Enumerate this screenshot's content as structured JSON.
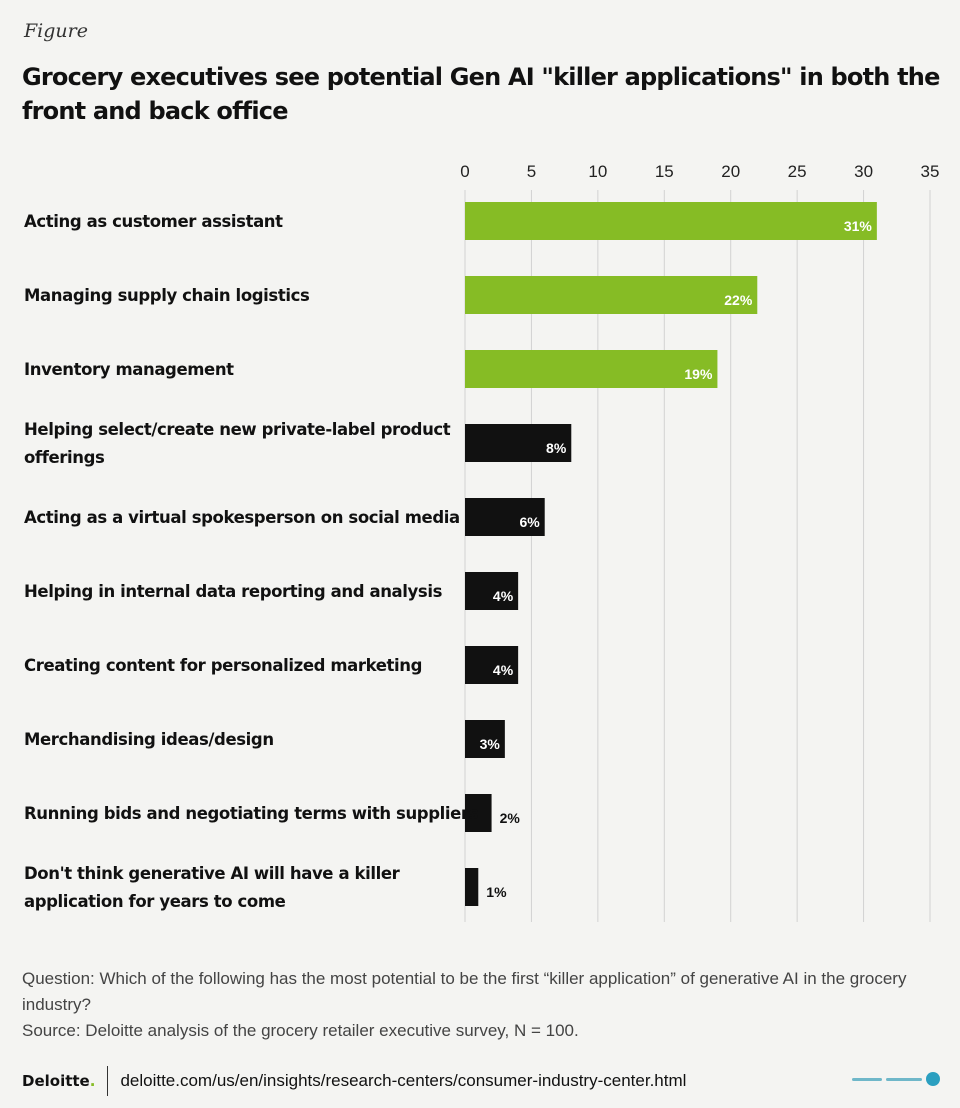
{
  "figure_label": "Figure",
  "title": "Grocery executives see potential Gen AI \"killer applications\" in both the front and back office",
  "chart_data": {
    "type": "bar",
    "orientation": "horizontal",
    "categories": [
      "Acting as customer assistant",
      "Managing supply chain logistics",
      "Inventory management",
      "Helping select/create new private-label product offerings",
      "Acting as a virtual spokesperson on social media",
      "Helping in internal data reporting and analysis",
      "Creating content for personalized marketing",
      "Merchandising ideas/design",
      "Running bids and negotiating terms with suppliers",
      "Don't think generative AI will have a killer application for years to come"
    ],
    "category_lines": [
      [
        "Acting as customer assistant"
      ],
      [
        "Managing supply chain logistics"
      ],
      [
        "Inventory management"
      ],
      [
        "Helping select/create new private-label product",
        "offerings"
      ],
      [
        "Acting as a virtual spokesperson on social media"
      ],
      [
        "Helping in internal data reporting and analysis"
      ],
      [
        "Creating content for personalized marketing"
      ],
      [
        "Merchandising ideas/design"
      ],
      [
        "Running bids and negotiating terms with suppliers"
      ],
      [
        "Don't think generative AI will have a killer",
        "application for years to come"
      ]
    ],
    "values": [
      31,
      22,
      19,
      8,
      6,
      4,
      4,
      3,
      2,
      1
    ],
    "value_labels": [
      "31%",
      "22%",
      "19%",
      "8%",
      "6%",
      "4%",
      "4%",
      "3%",
      "2%",
      "1%"
    ],
    "groups": [
      "highlight",
      "highlight",
      "highlight",
      "other",
      "other",
      "other",
      "other",
      "other",
      "other",
      "other"
    ],
    "xlim": [
      0,
      35
    ],
    "xticks": [
      0,
      5,
      10,
      15,
      20,
      25,
      30,
      35
    ],
    "xtick_labels": [
      "0",
      "5",
      "10",
      "15",
      "20",
      "25",
      "30",
      "35"
    ],
    "axis_position": "top",
    "grid": true,
    "colors": {
      "highlight": "#86bc25",
      "other": "#111111",
      "grid": "#d2d2d2"
    }
  },
  "notes": {
    "question": "Question: Which of the following has the most potential to be the first “killer application” of generative AI in the grocery industry?",
    "source": "Source: Deloitte analysis of the grocery retailer executive survey, N = 100."
  },
  "footer": {
    "logo_text": "Deloitte",
    "logo_dot": ".",
    "url": "deloitte.com/us/en/insights/research-centers/consumer-industry-center.html"
  }
}
